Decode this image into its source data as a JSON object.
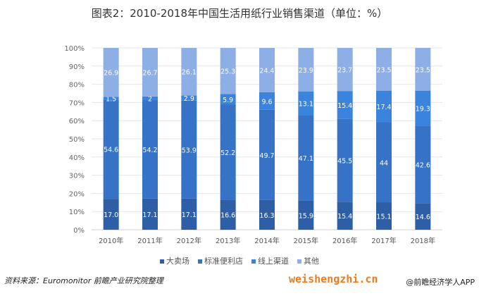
{
  "chart_data": {
    "type": "bar",
    "stacked": true,
    "title": "图表2：2010-2018年中国生活用纸行业销售渠道（单位：%）",
    "categories": [
      "2010年",
      "2011年",
      "2012年",
      "2013年",
      "2014年",
      "2015年",
      "2016年",
      "2017年",
      "2018年"
    ],
    "series": [
      {
        "name": "大卖场",
        "color": "#2e5fa6",
        "values": [
          17.0,
          17.1,
          17.1,
          16.6,
          16.3,
          15.9,
          15.4,
          15.1,
          14.6
        ],
        "labels": [
          "17.0",
          "17.1",
          "17.1",
          "16.6",
          "16.3",
          "15.9",
          "15.4",
          "15.1",
          "14.6"
        ]
      },
      {
        "name": "标准便利店",
        "color": "#3673c6",
        "values": [
          54.6,
          54.2,
          53.9,
          52.2,
          49.7,
          47.1,
          45.5,
          44,
          42.6
        ],
        "labels": [
          "54.6",
          "54.2",
          "53.9",
          "52.2",
          "49.7",
          "47.1",
          "45.5",
          "44",
          "42.6"
        ]
      },
      {
        "name": "线上渠道",
        "color": "#3b84dd",
        "values": [
          1.5,
          2,
          2.9,
          5.9,
          9.6,
          13.1,
          15.4,
          17.4,
          19.3
        ],
        "labels": [
          "1.5",
          "2",
          "2.9",
          "5.9",
          "9.6",
          "13.1",
          "15.4",
          "17.4",
          "19.3"
        ]
      },
      {
        "name": "其他",
        "color": "#8eaee6",
        "values": [
          26.9,
          26.7,
          26.1,
          25.3,
          24.4,
          23.9,
          23.7,
          23.5,
          23.5
        ],
        "labels": [
          "26.9",
          "26.7",
          "26.1",
          "25.3",
          "24.4",
          "23.9",
          "23.7",
          "23.5",
          "23.5"
        ]
      }
    ],
    "ylim": [
      0,
      100
    ],
    "yticks": [
      "0%",
      "10%",
      "20%",
      "30%",
      "40%",
      "50%",
      "60%",
      "70%",
      "80%",
      "90%",
      "100%"
    ],
    "grid": true,
    "legend": "bottom"
  },
  "footer": {
    "source": "资料来源：Euromonitor 前瞻产业研究院整理",
    "watermark": "weishengzhi.cn",
    "app": "@前瞻经济学人APP"
  }
}
